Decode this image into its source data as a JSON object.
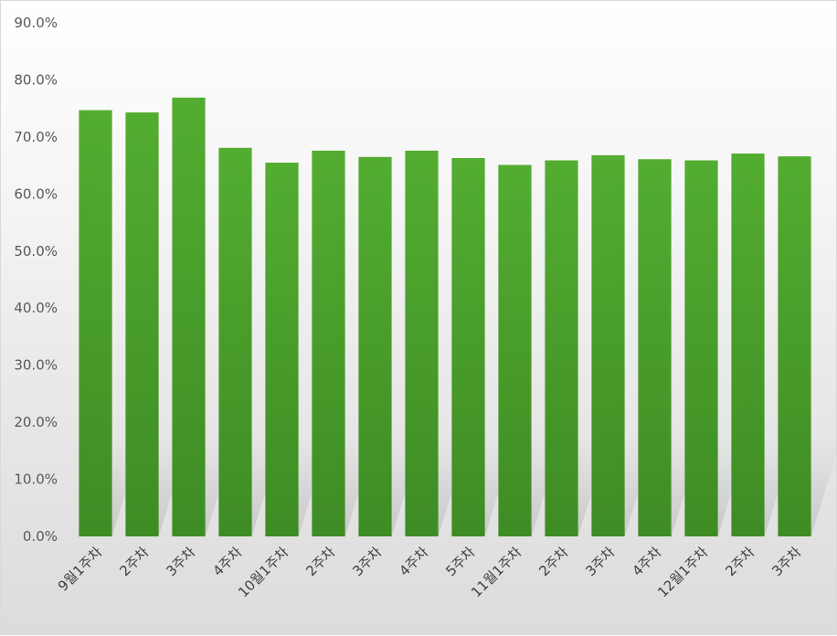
{
  "chart_data": {
    "type": "bar",
    "categories": [
      "9월1주차",
      "2주차",
      "3주차",
      "4주차",
      "10월1주차",
      "2주차",
      "3주차",
      "4주차",
      "5주차",
      "11월1주차",
      "2주차",
      "3주차",
      "4주차",
      "12월1주차",
      "2주차",
      "3주차"
    ],
    "values": [
      74.7,
      74.3,
      76.9,
      68.1,
      65.5,
      67.6,
      66.5,
      67.6,
      66.3,
      65.1,
      65.9,
      66.8,
      66.1,
      65.9,
      67.1,
      66.6
    ],
    "y_tick_labels": [
      "0.0%",
      "10.0%",
      "20.0%",
      "30.0%",
      "40.0%",
      "50.0%",
      "60.0%",
      "70.0%",
      "80.0%",
      "90.0%"
    ],
    "ylim": [
      0,
      90
    ],
    "y_unit": "%",
    "title": "",
    "xlabel": "",
    "ylabel": "",
    "grid": false,
    "legend": "none",
    "bar_color": "#4ea72e"
  }
}
